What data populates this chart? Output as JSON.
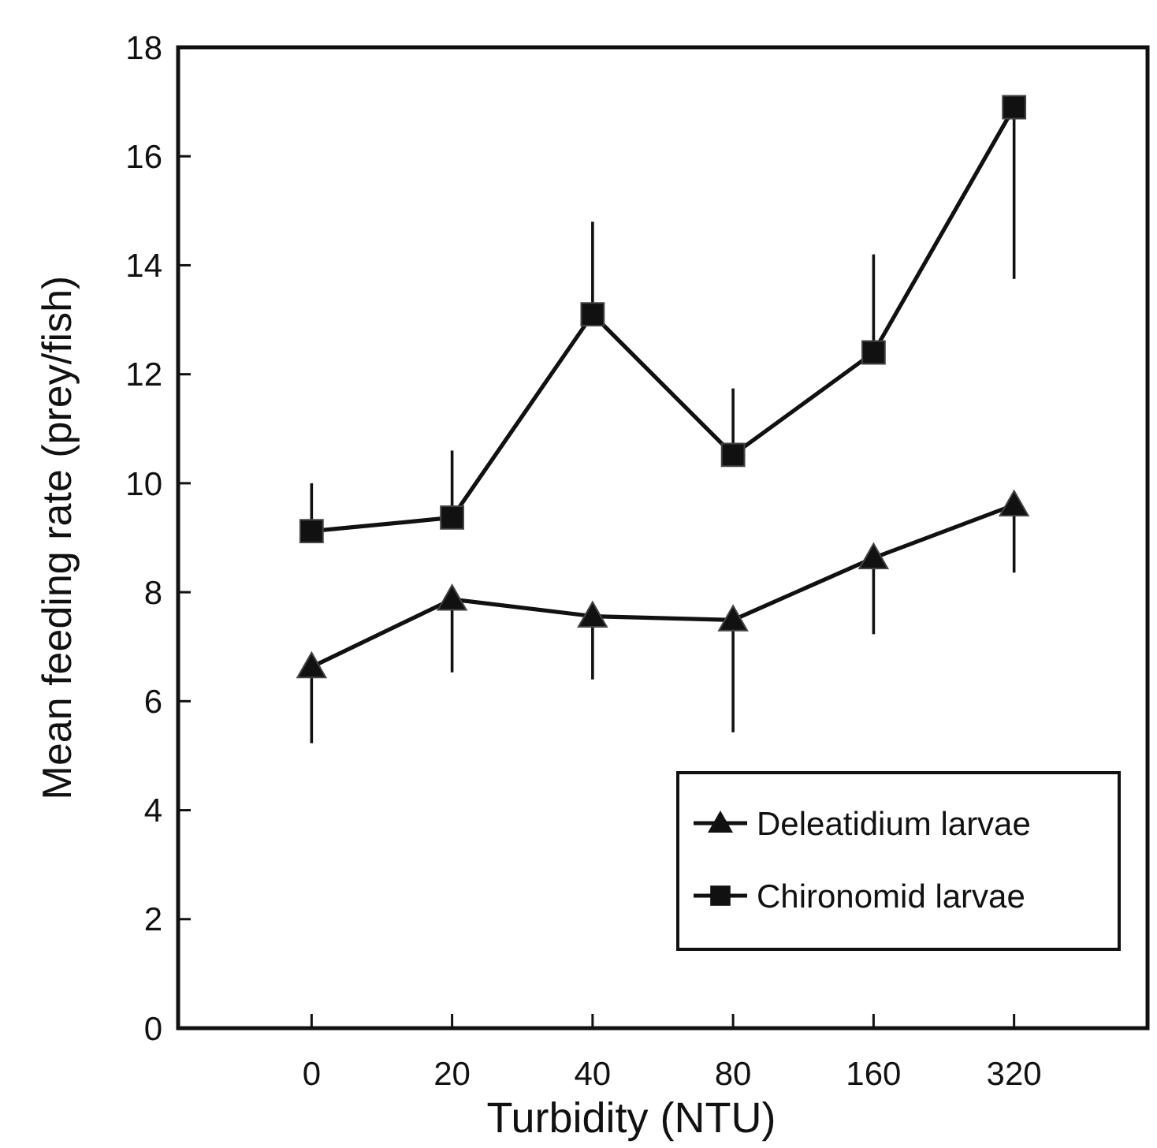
{
  "chart_data": {
    "type": "line",
    "xlabel": "Turbidity (NTU)",
    "ylabel": "Mean feeding rate (prey/fish)",
    "categories": [
      "0",
      "20",
      "40",
      "80",
      "160",
      "320"
    ],
    "ylim": [
      0,
      18
    ],
    "yticks": [
      0,
      2,
      4,
      6,
      8,
      10,
      12,
      14,
      16,
      18
    ],
    "grid": false,
    "legend": "bottom right",
    "line_style": "solid",
    "series": [
      {
        "name": "Deleatidium larvae",
        "color": "#111111",
        "marker": "triangle",
        "values": [
          6.63,
          7.87,
          7.56,
          7.49,
          8.63,
          9.6
        ],
        "errors": [
          [
            5.23,
            6.63
          ],
          [
            6.53,
            7.87
          ],
          [
            6.4,
            7.56
          ],
          [
            5.43,
            7.49
          ],
          [
            7.23,
            8.63
          ],
          [
            8.36,
            9.6
          ]
        ]
      },
      {
        "name": "Chironomid larvae",
        "color": "#111111",
        "marker": "square",
        "values": [
          9.12,
          9.37,
          13.1,
          10.52,
          12.4,
          16.9
        ],
        "errors": [
          [
            9.12,
            10.0
          ],
          [
            9.37,
            10.6
          ],
          [
            13.1,
            14.8
          ],
          [
            10.52,
            11.74
          ],
          [
            12.4,
            14.2
          ],
          [
            13.75,
            16.9
          ]
        ]
      }
    ]
  }
}
